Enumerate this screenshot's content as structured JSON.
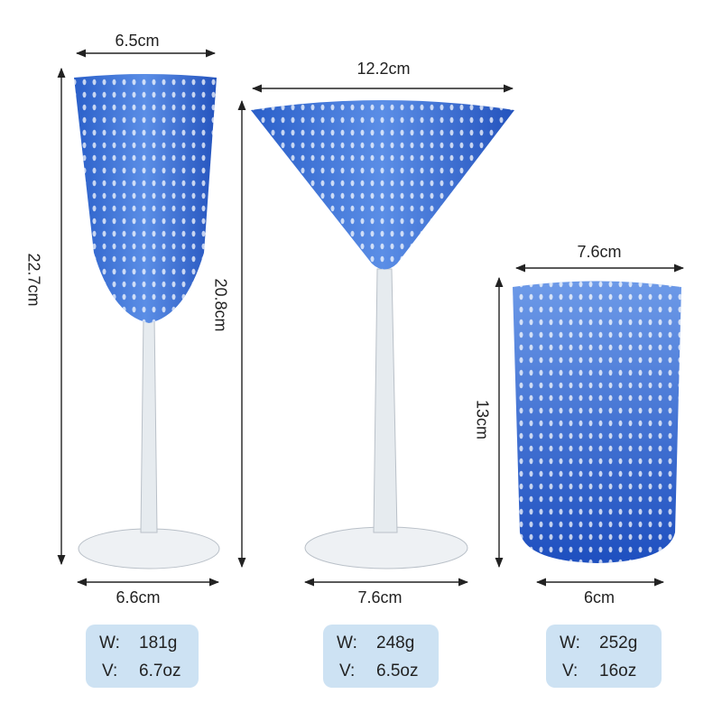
{
  "glasses": [
    {
      "top_width": "6.5cm",
      "height": "22.7cm",
      "base_width": "6.6cm",
      "weight_label": "W:",
      "weight": "181g",
      "volume_label": "V:",
      "volume": "6.7oz"
    },
    {
      "top_width": "12.2cm",
      "height": "20.8cm",
      "base_width": "7.6cm",
      "weight_label": "W:",
      "weight": "248g",
      "volume_label": "V:",
      "volume": "6.5oz"
    },
    {
      "top_width": "7.6cm",
      "height": "13cm",
      "base_width": "6cm",
      "weight_label": "W:",
      "weight": "252g",
      "volume_label": "V:",
      "volume": "16oz"
    }
  ]
}
